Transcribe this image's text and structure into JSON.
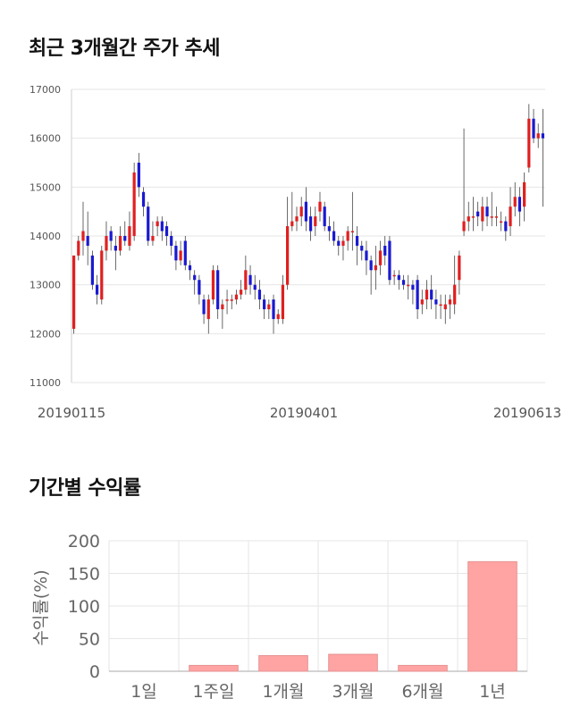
{
  "price_section": {
    "title": "최근 3개월간 주가 추세"
  },
  "returns_section": {
    "title": "기간별 수익률"
  },
  "chart_data": [
    {
      "type": "candlestick",
      "y_ticks": [
        "17000",
        "16000",
        "15000",
        "14000",
        "13000",
        "12000",
        "11000"
      ],
      "ylim": [
        11000,
        17000
      ],
      "x_ticks": [
        "20190115",
        "20190401",
        "20190613"
      ],
      "colors": {
        "up": "#e02020",
        "down": "#1a1ad0",
        "grid": "#e6e6e6",
        "axis": "#cccccc"
      },
      "candles": [
        [
          12100,
          13600,
          13600,
          12000
        ],
        [
          13600,
          13900,
          14000,
          13500
        ],
        [
          13900,
          14100,
          14700,
          13600
        ],
        [
          14000,
          13800,
          14500,
          13400
        ],
        [
          13600,
          13000,
          13700,
          12900
        ],
        [
          13000,
          12800,
          13200,
          12600
        ],
        [
          12700,
          13700,
          13800,
          12600
        ],
        [
          13700,
          14000,
          14300,
          13500
        ],
        [
          14100,
          13900,
          14200,
          13700
        ],
        [
          13800,
          13700,
          14000,
          13300
        ],
        [
          13700,
          14000,
          14200,
          13600
        ],
        [
          14000,
          13900,
          14300,
          13800
        ],
        [
          13800,
          14200,
          14500,
          13700
        ],
        [
          14000,
          15300,
          15500,
          13900
        ],
        [
          15500,
          15000,
          15700,
          14800
        ],
        [
          14900,
          14600,
          15000,
          14400
        ],
        [
          14600,
          13900,
          14700,
          13800
        ],
        [
          13900,
          14000,
          14300,
          13800
        ],
        [
          14200,
          14300,
          14400,
          14000
        ],
        [
          14300,
          14100,
          14400,
          13900
        ],
        [
          14200,
          14000,
          14300,
          13800
        ],
        [
          14000,
          13800,
          14100,
          13600
        ],
        [
          13800,
          13500,
          13900,
          13300
        ],
        [
          13500,
          13700,
          13900,
          13400
        ],
        [
          13900,
          13400,
          14000,
          13300
        ],
        [
          13400,
          13300,
          13500,
          13100
        ],
        [
          13200,
          13100,
          13300,
          12800
        ],
        [
          13100,
          12800,
          13200,
          12600
        ],
        [
          12700,
          12400,
          12800,
          12200
        ],
        [
          12300,
          12700,
          12800,
          12000
        ],
        [
          12700,
          13300,
          13400,
          12600
        ],
        [
          13300,
          12500,
          13400,
          12300
        ],
        [
          12500,
          12600,
          12700,
          12100
        ],
        [
          12700,
          12700,
          12900,
          12400
        ],
        [
          12700,
          12700,
          12800,
          12500
        ],
        [
          12700,
          12800,
          12900,
          12600
        ],
        [
          12800,
          12900,
          13100,
          12700
        ],
        [
          12900,
          13300,
          13600,
          12800
        ],
        [
          13200,
          13000,
          13400,
          12800
        ],
        [
          13000,
          12900,
          13200,
          12700
        ],
        [
          12900,
          12700,
          13100,
          12500
        ],
        [
          12700,
          12500,
          12800,
          12300
        ],
        [
          12500,
          12600,
          12700,
          12300
        ],
        [
          12700,
          12300,
          12800,
          12000
        ],
        [
          12300,
          12400,
          12500,
          12200
        ],
        [
          12300,
          13000,
          13200,
          12200
        ],
        [
          13000,
          14200,
          14800,
          12900
        ],
        [
          14200,
          14300,
          14900,
          14100
        ],
        [
          14300,
          14400,
          14600,
          14100
        ],
        [
          14400,
          14600,
          14800,
          14200
        ],
        [
          14700,
          14300,
          15000,
          14100
        ],
        [
          14400,
          14100,
          14600,
          13900
        ],
        [
          14200,
          14400,
          14600,
          14000
        ],
        [
          14500,
          14700,
          14900,
          14300
        ],
        [
          14600,
          14200,
          14700,
          14100
        ],
        [
          14200,
          14100,
          14400,
          13900
        ],
        [
          14100,
          13900,
          14300,
          13800
        ],
        [
          13900,
          13800,
          14000,
          13600
        ],
        [
          13800,
          13900,
          14000,
          13500
        ],
        [
          13900,
          14100,
          14200,
          13700
        ],
        [
          14100,
          14100,
          14900,
          13700
        ],
        [
          14000,
          13800,
          14200,
          13400
        ],
        [
          13800,
          13700,
          13900,
          13500
        ],
        [
          13700,
          13500,
          13900,
          13200
        ],
        [
          13500,
          13300,
          13600,
          12800
        ],
        [
          13300,
          13400,
          13800,
          12900
        ],
        [
          13400,
          13700,
          13900,
          13200
        ],
        [
          13800,
          13600,
          14000,
          13400
        ],
        [
          13900,
          13100,
          14000,
          13000
        ],
        [
          13200,
          13200,
          13300,
          13000
        ],
        [
          13200,
          13100,
          13300,
          12900
        ],
        [
          13100,
          13000,
          13200,
          12900
        ],
        [
          13000,
          13000,
          13200,
          12700
        ],
        [
          13000,
          12900,
          13100,
          12600
        ],
        [
          13100,
          12500,
          13200,
          12300
        ],
        [
          12600,
          12700,
          12900,
          12400
        ],
        [
          12700,
          12900,
          13100,
          12500
        ],
        [
          12900,
          12700,
          13200,
          12500
        ],
        [
          12700,
          12600,
          12900,
          12300
        ],
        [
          12600,
          12600,
          12800,
          12300
        ],
        [
          12500,
          12600,
          12800,
          12200
        ],
        [
          12600,
          12700,
          12800,
          12300
        ],
        [
          12600,
          13000,
          13600,
          12400
        ],
        [
          13100,
          13600,
          13700,
          12800
        ],
        [
          14100,
          14300,
          16200,
          14000
        ],
        [
          14300,
          14400,
          14700,
          14100
        ],
        [
          14400,
          14400,
          14800,
          14100
        ],
        [
          14500,
          14400,
          14700,
          14200
        ],
        [
          14300,
          14600,
          14800,
          14100
        ],
        [
          14600,
          14400,
          14800,
          14200
        ],
        [
          14400,
          14400,
          14900,
          14200
        ],
        [
          14400,
          14400,
          14600,
          14200
        ],
        [
          14300,
          14300,
          14500,
          14100
        ],
        [
          14300,
          14100,
          14400,
          13900
        ],
        [
          14200,
          14600,
          15000,
          14000
        ],
        [
          14600,
          14800,
          15100,
          14400
        ],
        [
          14800,
          14500,
          15000,
          14200
        ],
        [
          14600,
          15100,
          15300,
          14300
        ],
        [
          15400,
          16400,
          16700,
          15300
        ],
        [
          16400,
          16000,
          16600,
          15900
        ],
        [
          16000,
          16100,
          16300,
          15800
        ],
        [
          16100,
          16000,
          16600,
          14600
        ]
      ]
    },
    {
      "type": "bar",
      "categories": [
        "1일",
        "1주일",
        "1개월",
        "3개월",
        "6개월",
        "1년"
      ],
      "values": [
        0,
        9,
        24,
        26,
        9,
        168
      ],
      "ylim": [
        0,
        200
      ],
      "y_ticks": [
        "200",
        "150",
        "100",
        "50",
        "0"
      ],
      "ylabel": "수익률(%)",
      "colors": {
        "bar": "#ffa3a3",
        "bar_edge": "#e59292",
        "grid": "#e6e6e6",
        "axis": "#aaaaaa"
      }
    }
  ]
}
